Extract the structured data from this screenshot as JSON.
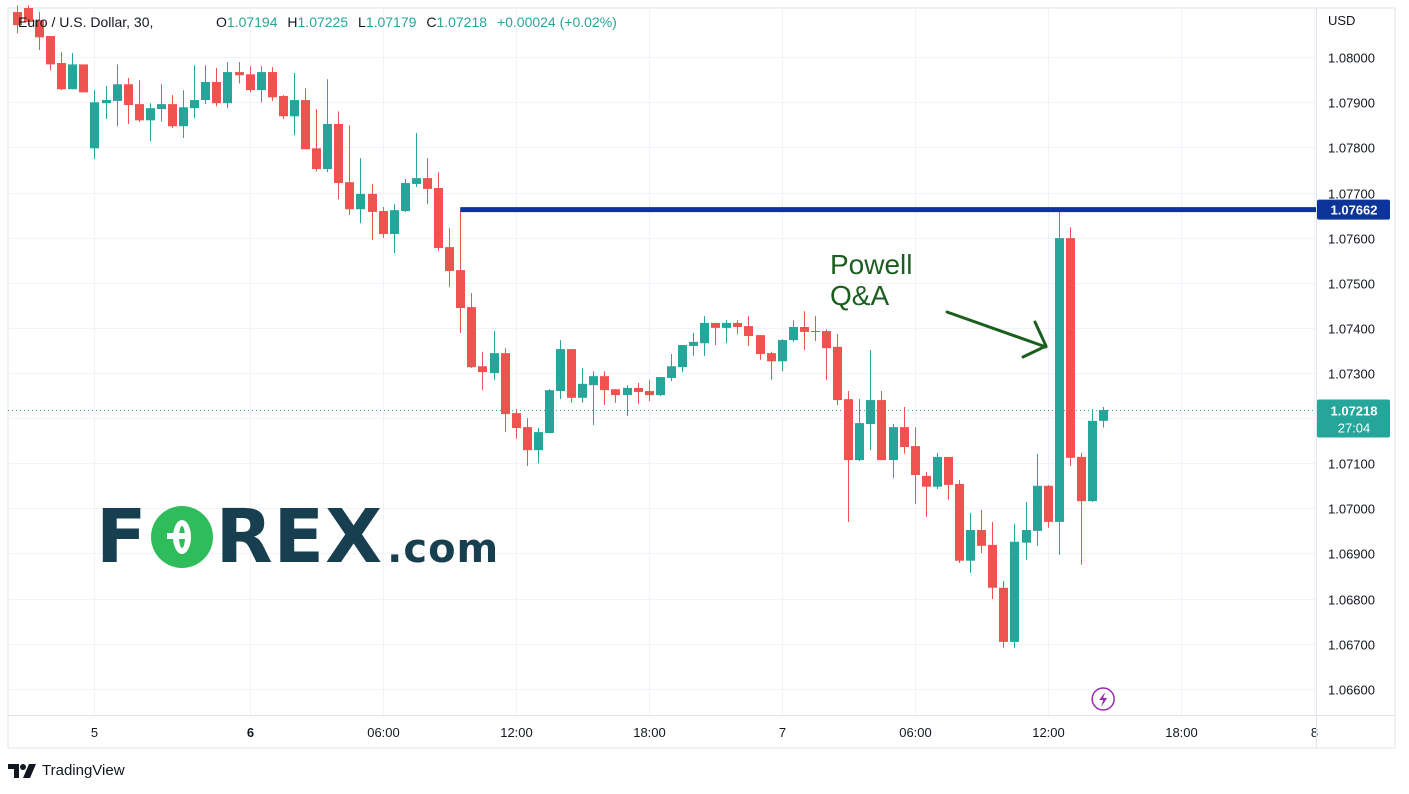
{
  "header": {
    "title": "Euro / U.S. Dollar, 30,",
    "open_label": "O",
    "open": "1.07194",
    "high_label": "H",
    "high": "1.07225",
    "low_label": "L",
    "low": "1.07179",
    "close_label": "C",
    "close": "1.07218",
    "change": "+0.00024 (+0.02%)"
  },
  "price_axis": {
    "currency": "USD"
  },
  "watermark_logo": "FOREX.com",
  "annotation": {
    "line1": "Powell",
    "line2": "Q&A",
    "color": "#1b5e20"
  },
  "footer": {
    "brand": "TradingView"
  },
  "icons": {
    "event": "lightning-icon",
    "brand": "tradingview-logo-icon"
  },
  "colors": {
    "up": "#26a69a",
    "down": "#ef5350",
    "level_line": "#0d3499",
    "grid": "#f0f3fa",
    "text": "#131722"
  },
  "chart_data": {
    "type": "candlestick",
    "interval": "30",
    "ylim": [
      1.06542,
      1.08109
    ],
    "grid": true,
    "y_ticks": [
      "1.08000",
      "1.07900",
      "1.07800",
      "1.07700",
      "1.07600",
      "1.07500",
      "1.07400",
      "1.07300",
      "1.07200",
      "1.07100",
      "1.07000",
      "1.06900",
      "1.06800",
      "1.06700",
      "1.06600"
    ],
    "y_tick_values": [
      1.08,
      1.079,
      1.078,
      1.077,
      1.076,
      1.075,
      1.074,
      1.073,
      1.072,
      1.071,
      1.07,
      1.069,
      1.068,
      1.067,
      1.066
    ],
    "x_ticks": [
      {
        "label": "5",
        "index": 7,
        "bold": false
      },
      {
        "label": "6",
        "index": 21,
        "bold": true
      },
      {
        "label": "06:00",
        "index": 33,
        "bold": false
      },
      {
        "label": "12:00",
        "index": 45,
        "bold": false
      },
      {
        "label": "18:00",
        "index": 57,
        "bold": false
      },
      {
        "label": "7",
        "index": 69,
        "bold": false
      },
      {
        "label": "06:00",
        "index": 81,
        "bold": false
      },
      {
        "label": "12:00",
        "index": 93,
        "bold": false
      },
      {
        "label": "18:00",
        "index": 105,
        "bold": false
      },
      {
        "label": "8",
        "index": 117,
        "bold": false
      }
    ],
    "x_range": [
      -0.8,
      117.2
    ],
    "candle_fields": [
      "open",
      "high",
      "low",
      "close"
    ],
    "candles": [
      [
        1.081,
        1.08115,
        1.08053,
        1.08071
      ],
      [
        1.08109,
        1.08115,
        1.08071,
        1.08078
      ],
      [
        1.08082,
        1.081,
        1.08016,
        1.08044
      ],
      [
        1.08047,
        1.08047,
        1.07971,
        1.07984
      ],
      [
        1.07987,
        1.08011,
        1.07927,
        1.07929
      ],
      [
        1.07929,
        1.08009,
        1.07929,
        1.07984
      ],
      [
        1.07984,
        1.07984,
        1.07922,
        1.07922
      ],
      [
        1.07798,
        1.07927,
        1.07774,
        1.079
      ],
      [
        1.07898,
        1.07936,
        1.07863,
        1.07905
      ],
      [
        1.07903,
        1.07984,
        1.07847,
        1.0794
      ],
      [
        1.0794,
        1.07954,
        1.07852,
        1.07894
      ],
      [
        1.07896,
        1.07949,
        1.07856,
        1.0786
      ],
      [
        1.0786,
        1.07898,
        1.07814,
        1.07887
      ],
      [
        1.07885,
        1.0794,
        1.07858,
        1.07896
      ],
      [
        1.07896,
        1.07916,
        1.07843,
        1.07847
      ],
      [
        1.07847,
        1.07927,
        1.07821,
        1.07889
      ],
      [
        1.07887,
        1.07982,
        1.07865,
        1.07905
      ],
      [
        1.07905,
        1.07982,
        1.07896,
        1.07945
      ],
      [
        1.07945,
        1.07976,
        1.07891,
        1.07898
      ],
      [
        1.07898,
        1.07989,
        1.07887,
        1.07967
      ],
      [
        1.07967,
        1.07989,
        1.07942,
        1.0796
      ],
      [
        1.07962,
        1.0798,
        1.07922,
        1.07927
      ],
      [
        1.07927,
        1.0798,
        1.079,
        1.07967
      ],
      [
        1.07967,
        1.07978,
        1.07903,
        1.07911
      ],
      [
        1.07914,
        1.07916,
        1.07863,
        1.07869
      ],
      [
        1.07869,
        1.07965,
        1.07827,
        1.07905
      ],
      [
        1.07905,
        1.07931,
        1.07796,
        1.07796
      ],
      [
        1.07798,
        1.07885,
        1.07747,
        1.07752
      ],
      [
        1.07752,
        1.07951,
        1.07745,
        1.07852
      ],
      [
        1.07852,
        1.0788,
        1.07685,
        1.07721
      ],
      [
        1.07723,
        1.07849,
        1.0765,
        1.07663
      ],
      [
        1.07663,
        1.07776,
        1.07632,
        1.07697
      ],
      [
        1.07697,
        1.07719,
        1.07595,
        1.07657
      ],
      [
        1.07659,
        1.07668,
        1.07599,
        1.07608
      ],
      [
        1.07608,
        1.07674,
        1.07566,
        1.07661
      ],
      [
        1.07659,
        1.0773,
        1.07657,
        1.07721
      ],
      [
        1.07719,
        1.07832,
        1.07712,
        1.07732
      ],
      [
        1.07732,
        1.07776,
        1.07674,
        1.07708
      ],
      [
        1.0771,
        1.07745,
        1.0757,
        1.07577
      ],
      [
        1.07579,
        1.07621,
        1.07491,
        1.07526
      ],
      [
        1.07528,
        1.07662,
        1.07389,
        1.07444
      ],
      [
        1.07446,
        1.07477,
        1.07311,
        1.07313
      ],
      [
        1.07315,
        1.07347,
        1.07262,
        1.07302
      ],
      [
        1.073,
        1.07393,
        1.07285,
        1.07344
      ],
      [
        1.07344,
        1.07355,
        1.07169,
        1.07209
      ],
      [
        1.07211,
        1.0722,
        1.07154,
        1.07178
      ],
      [
        1.0718,
        1.072,
        1.07094,
        1.07129
      ],
      [
        1.07129,
        1.07178,
        1.071,
        1.07169
      ],
      [
        1.07167,
        1.07264,
        1.07167,
        1.07262
      ],
      [
        1.0726,
        1.07373,
        1.07242,
        1.07353
      ],
      [
        1.07353,
        1.07353,
        1.07234,
        1.07245
      ],
      [
        1.07245,
        1.07311,
        1.07234,
        1.07276
      ],
      [
        1.07273,
        1.07304,
        1.07185,
        1.07293
      ],
      [
        1.07293,
        1.07304,
        1.07229,
        1.07262
      ],
      [
        1.07264,
        1.07264,
        1.07234,
        1.07251
      ],
      [
        1.07251,
        1.07273,
        1.07205,
        1.07267
      ],
      [
        1.07267,
        1.07278,
        1.07231,
        1.07258
      ],
      [
        1.0726,
        1.07285,
        1.07238,
        1.07251
      ],
      [
        1.07251,
        1.07291,
        1.07249,
        1.07291
      ],
      [
        1.07289,
        1.07342,
        1.07282,
        1.07315
      ],
      [
        1.07313,
        1.07362,
        1.07302,
        1.07362
      ],
      [
        1.0736,
        1.07389,
        1.07338,
        1.07369
      ],
      [
        1.07366,
        1.07426,
        1.07338,
        1.07411
      ],
      [
        1.07411,
        1.07411,
        1.07362,
        1.074
      ],
      [
        1.074,
        1.07417,
        1.07366,
        1.07411
      ],
      [
        1.07411,
        1.07417,
        1.07386,
        1.07402
      ],
      [
        1.07404,
        1.07426,
        1.0736,
        1.07382
      ],
      [
        1.07384,
        1.07384,
        1.07329,
        1.07342
      ],
      [
        1.07344,
        1.07347,
        1.07285,
        1.07326
      ],
      [
        1.07326,
        1.07375,
        1.07304,
        1.07373
      ],
      [
        1.07373,
        1.07417,
        1.07369,
        1.07402
      ],
      [
        1.07402,
        1.07437,
        1.07351,
        1.07391
      ],
      [
        1.07393,
        1.07426,
        1.07371,
        1.07391
      ],
      [
        1.07393,
        1.07397,
        1.07285,
        1.07355
      ],
      [
        1.07358,
        1.07386,
        1.07229,
        1.0724
      ],
      [
        1.07242,
        1.0726,
        1.0697,
        1.07107
      ],
      [
        1.07107,
        1.07242,
        1.07105,
        1.07189
      ],
      [
        1.07187,
        1.07351,
        1.07129,
        1.0724
      ],
      [
        1.0724,
        1.0726,
        1.07107,
        1.07107
      ],
      [
        1.07107,
        1.07187,
        1.07067,
        1.0718
      ],
      [
        1.0718,
        1.07225,
        1.07121,
        1.07136
      ],
      [
        1.07138,
        1.0718,
        1.0701,
        1.07074
      ],
      [
        1.07072,
        1.07081,
        1.06981,
        1.07048
      ],
      [
        1.07048,
        1.07123,
        1.07043,
        1.07114
      ],
      [
        1.07114,
        1.07114,
        1.07019,
        1.07052
      ],
      [
        1.07054,
        1.07063,
        1.06879,
        1.06884
      ],
      [
        1.06884,
        1.0699,
        1.06857,
        1.06952
      ],
      [
        1.06952,
        1.06997,
        1.06901,
        1.06917
      ],
      [
        1.06919,
        1.0697,
        1.06799,
        1.06824
      ],
      [
        1.06824,
        1.06839,
        1.06691,
        1.06704
      ],
      [
        1.06704,
        1.06966,
        1.06691,
        1.06926
      ],
      [
        1.06924,
        1.07014,
        1.06886,
        1.06952
      ],
      [
        1.0695,
        1.07121,
        1.06917,
        1.0705
      ],
      [
        1.0705,
        1.07052,
        1.06957,
        1.0697
      ],
      [
        1.0697,
        1.07662,
        1.06897,
        1.07599
      ],
      [
        1.07599,
        1.07623,
        1.07094,
        1.07112
      ],
      [
        1.07114,
        1.07123,
        1.06875,
        1.07016
      ],
      [
        1.07016,
        1.0722,
        1.07014,
        1.07194
      ],
      [
        1.07194,
        1.07225,
        1.07179,
        1.07218
      ]
    ],
    "level_line": {
      "price": 1.07662,
      "label": "1.07662",
      "start_index": 40
    },
    "last_price": {
      "price": 1.07218,
      "label": "1.07218",
      "countdown": "27:04"
    },
    "event_marker_index": 98
  }
}
